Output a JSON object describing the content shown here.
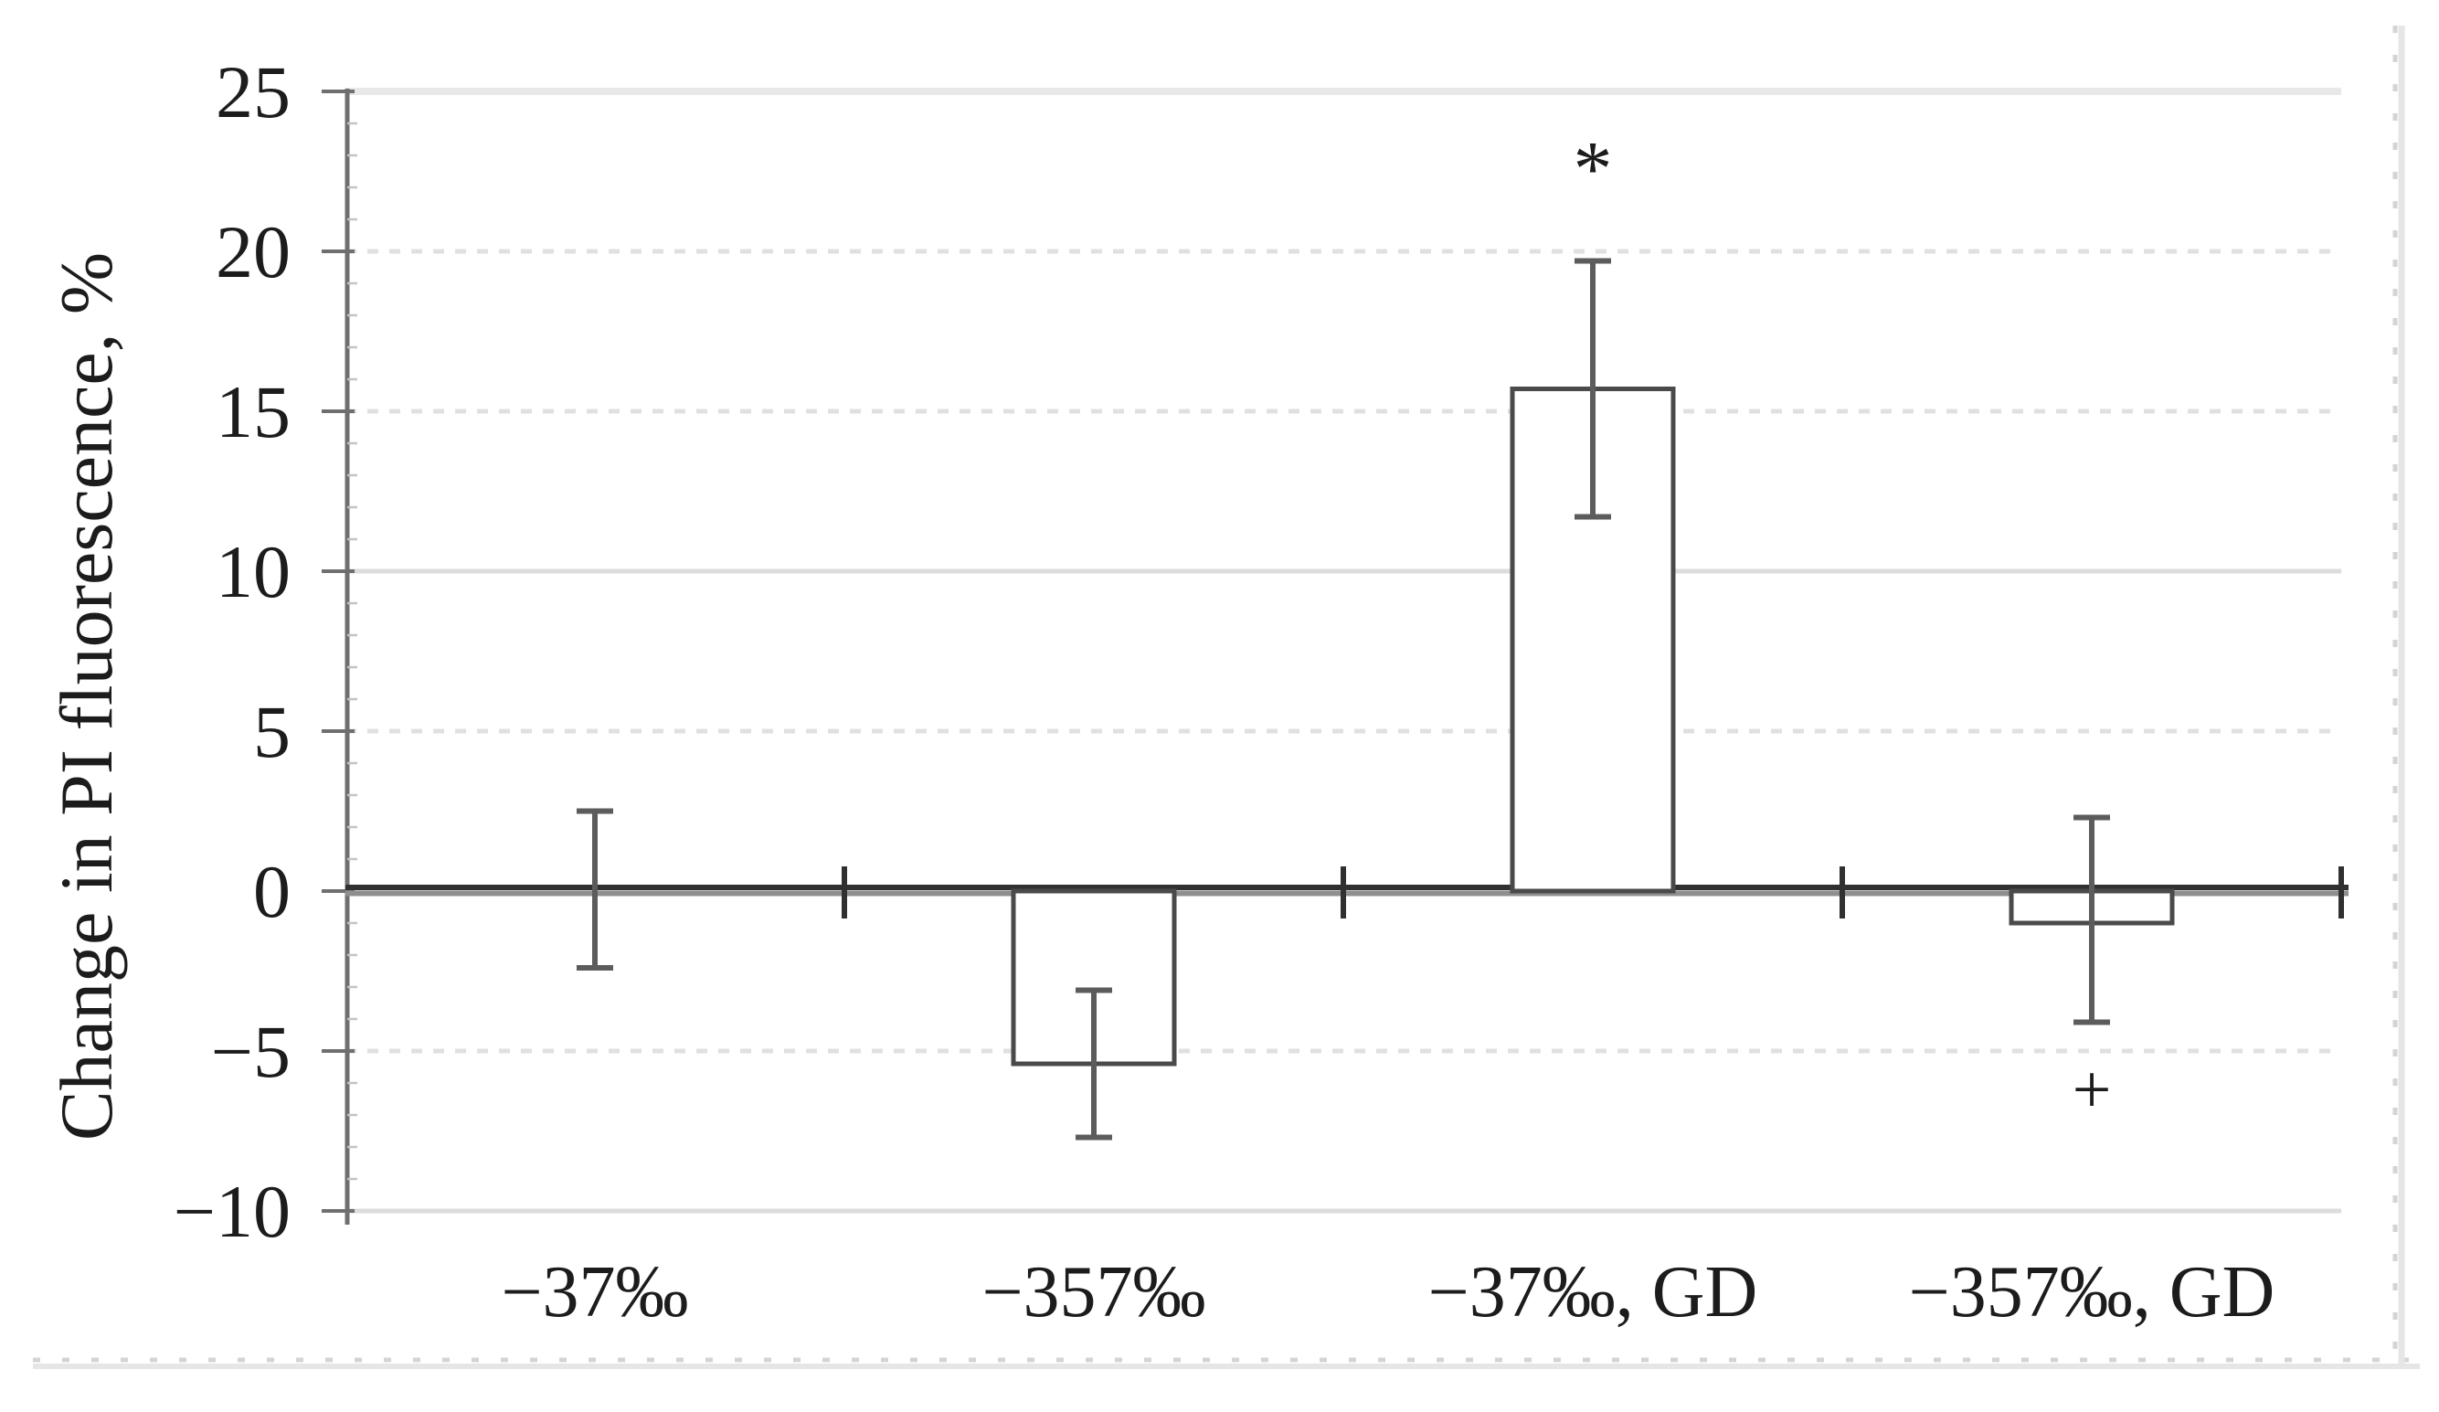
{
  "chart_data": {
    "type": "bar",
    "title": "",
    "xlabel": "",
    "ylabel": "Change in PI fluorescence, %",
    "categories": [
      "−37‰",
      "−357‰",
      "−37‰, GD",
      "−357‰, GD"
    ],
    "values": [
      0,
      -5.4,
      15.7,
      -1.0
    ],
    "errors": {
      "high": [
        2.5,
        -3.1,
        19.7,
        2.3
      ],
      "low": [
        -2.4,
        -7.7,
        11.7,
        -4.1
      ]
    },
    "annotations": [
      {
        "text": "*",
        "category_index": 2,
        "value": 22.9
      },
      {
        "text": "+",
        "category_index": 3,
        "value": -6.3
      }
    ],
    "ylim": [
      -10,
      25
    ],
    "yticks": [
      {
        "label": "25",
        "value": 25,
        "grid": "solid"
      },
      {
        "label": "20",
        "value": 20,
        "grid": "dotted"
      },
      {
        "label": "15",
        "value": 15,
        "grid": "dotted"
      },
      {
        "label": "10",
        "value": 10,
        "grid": "solid"
      },
      {
        "label": "5",
        "value": 5,
        "grid": "dotted"
      },
      {
        "label": "0",
        "value": 0,
        "grid": "none"
      },
      {
        "label": "−5",
        "value": -5,
        "grid": "dotted"
      },
      {
        "label": "−10",
        "value": -10,
        "grid": "solid"
      }
    ],
    "grid_on": true,
    "legend": null,
    "bar_fill": "#ffffff",
    "colors": {
      "bar_outline": "#4a4a4a",
      "error_bar": "#5c5c5c",
      "zero_axis_dark": "#303030",
      "zero_axis_shadow": "#8f8f8f",
      "y_axis": "#6f6f6f",
      "minor_tick": "#c4c4c4",
      "grid_solid": "#dcdcdc",
      "grid_solid_top": "#e8e8e8",
      "grid_dotted": "#e0e0e0",
      "border_dotted": "#d4d4d4",
      "border_solid": "#e6e6e6",
      "star": "#4a4a4a",
      "plus": "#707070",
      "text": "#1c1c1c"
    }
  }
}
